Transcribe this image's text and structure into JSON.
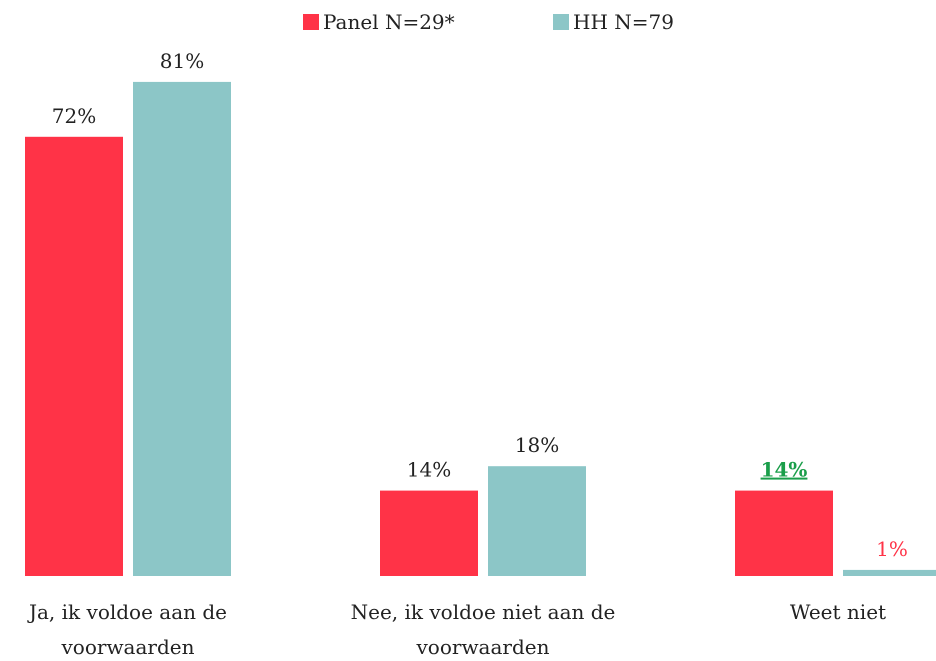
{
  "chart_data": {
    "type": "bar",
    "categories": [
      "Ja, ik voldoe aan de voorwaarden",
      "Nee, ik voldoe niet aan de voorwaarden",
      "Weet niet"
    ],
    "series": [
      {
        "name": "Panel N=29*",
        "color": "#ff3347",
        "values": [
          72,
          14,
          14
        ],
        "value_labels": [
          "72%",
          "14%",
          "14%"
        ]
      },
      {
        "name": "HH N=79",
        "color": "#8cc6c7",
        "values": [
          81,
          18,
          1
        ],
        "value_labels": [
          "81%",
          "18%",
          "1%"
        ]
      }
    ]
  }
}
